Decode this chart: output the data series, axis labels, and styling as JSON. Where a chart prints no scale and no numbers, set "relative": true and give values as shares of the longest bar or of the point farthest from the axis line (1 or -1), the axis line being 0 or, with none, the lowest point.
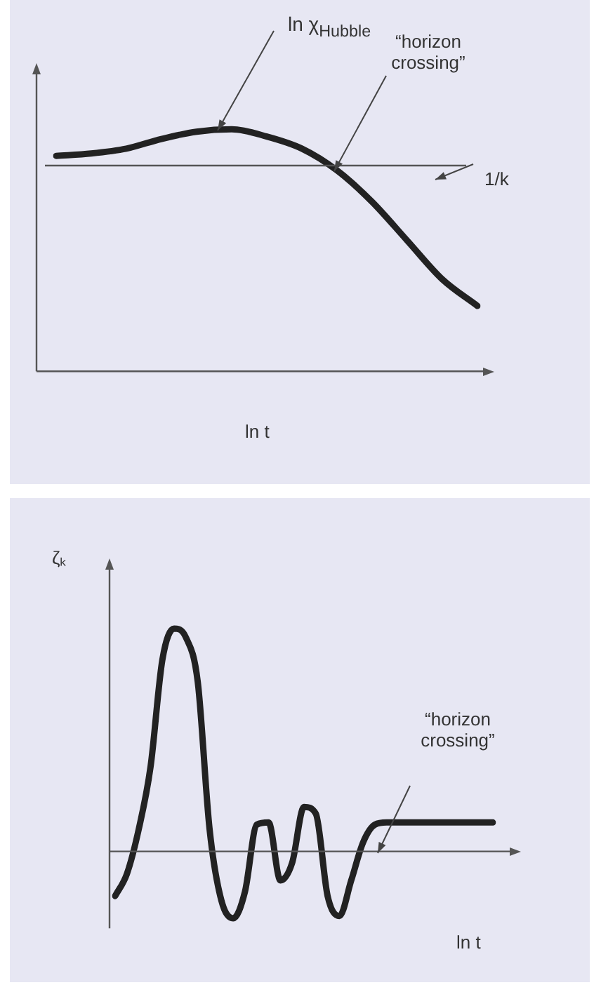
{
  "chart_data": [
    {
      "type": "line",
      "relative": true,
      "xlabel": "ln t",
      "categories": [
        null,
        null,
        null,
        null,
        null,
        null,
        null,
        null,
        null,
        null,
        null,
        null,
        null
      ],
      "series": [
        {
          "name": "ln χ$_{Hubble}$",
          "color": "#222222",
          "values": [
            0.89,
            0.9,
            0.92,
            0.96,
            0.99,
            1,
            0.97,
            0.92,
            0.83,
            0.7,
            0.54,
            0.38,
            0.27
          ]
        }
      ],
      "ref_lines": [
        {
          "axis": "y",
          "value": 0.85,
          "label": "1/k",
          "color": "#555555"
        }
      ],
      "annotations": [
        "“horizon crossing”"
      ],
      "legend": false,
      "grid": false,
      "marker": "none"
    },
    {
      "type": "line",
      "relative": true,
      "xlabel": "ln t",
      "ylabel": "ζₖ",
      "categories": [
        null,
        null,
        null,
        null,
        null,
        null,
        null,
        null,
        null,
        null,
        null,
        null,
        null,
        null,
        null,
        null,
        null,
        null,
        null,
        null,
        null,
        null,
        null,
        null,
        null,
        null,
        null,
        null,
        null,
        null,
        null,
        null,
        null
      ],
      "series": [
        {
          "color": "#222222",
          "values": [
            -0.2,
            -0.1,
            0.1,
            0.38,
            0.86,
            1,
            0.96,
            0.76,
            0.1,
            -0.22,
            -0.3,
            -0.18,
            0.12,
            0.13,
            -0.13,
            -0.05,
            0.2,
            0.17,
            -0.2,
            -0.29,
            -0.13,
            0.04,
            0.12,
            0.13,
            0.13,
            0.13,
            0.13,
            0.13,
            0.13,
            0.13,
            0.13,
            0.13,
            0.13
          ]
        }
      ],
      "annotations": [
        "“horizon crossing”"
      ],
      "legend": false,
      "grid": false,
      "marker": "none"
    }
  ]
}
